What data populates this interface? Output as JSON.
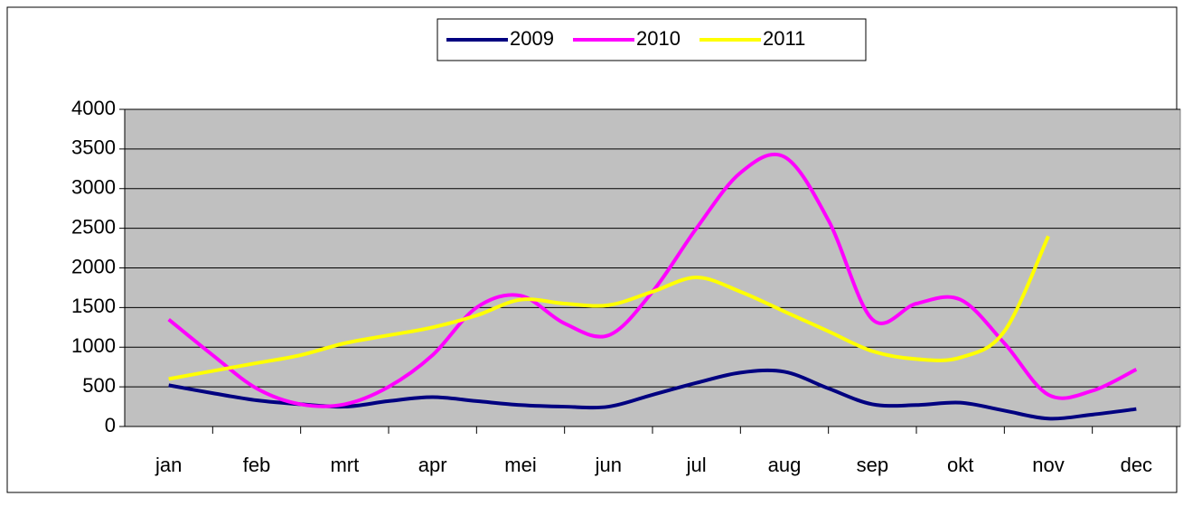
{
  "chart_data": {
    "type": "line",
    "categories": [
      "jan",
      null,
      "feb",
      null,
      "mrt",
      null,
      "apr",
      null,
      "mei",
      null,
      "jun",
      null,
      "jul",
      null,
      "aug",
      null,
      "sep",
      null,
      "okt",
      null,
      "nov",
      null,
      "dec"
    ],
    "series": [
      {
        "name": "2009",
        "color": "#000080",
        "values": [
          520,
          420,
          330,
          280,
          250,
          320,
          370,
          320,
          270,
          250,
          250,
          400,
          550,
          680,
          690,
          480,
          280,
          270,
          300,
          200,
          100,
          150,
          220
        ]
      },
      {
        "name": "2010",
        "color": "#ff00ff",
        "values": [
          1350,
          900,
          480,
          280,
          280,
          500,
          900,
          1500,
          1650,
          1300,
          1150,
          1700,
          2500,
          3200,
          3400,
          2600,
          1350,
          1550,
          1600,
          1050,
          400,
          450,
          720
        ]
      },
      {
        "name": "2011",
        "color": "#ffff00",
        "values": [
          600,
          700,
          800,
          900,
          1050,
          1150,
          1250,
          1400,
          1600,
          1550,
          1530,
          1700,
          1880,
          1700,
          1450,
          1200,
          950,
          850,
          870,
          1200,
          2400,
          null,
          null
        ]
      }
    ],
    "ylim": [
      0,
      4000
    ],
    "yticks": [
      0,
      500,
      1000,
      1500,
      2000,
      2500,
      3000,
      3500,
      4000
    ],
    "grid": true,
    "legend": "top"
  }
}
